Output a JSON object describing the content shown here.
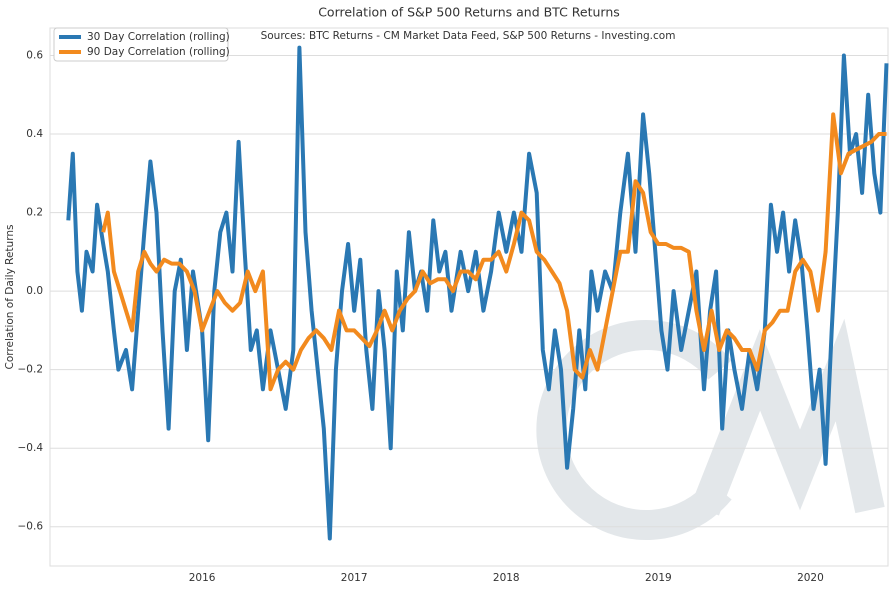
{
  "chart_data": {
    "type": "line",
    "title": "Correlation of S&P 500 Returns and BTC Returns",
    "annotation": "Sources: BTC Returns - CM Market Data Feed,  S&P 500 Returns - Investing.com",
    "y_label": "Correlation of Daily Returns",
    "xlim": [
      2015.0,
      2020.51
    ],
    "xticks": [
      2016,
      2017,
      2018,
      2019,
      2020
    ],
    "ylim": [
      -0.7,
      0.67
    ],
    "yticks": [
      {
        "value": -0.6,
        "label": "−0.6"
      },
      {
        "value": -0.4,
        "label": "−0.4"
      },
      {
        "value": -0.2,
        "label": "−0.2"
      },
      {
        "value": 0,
        "label": "0.0"
      },
      0.2,
      0.4,
      0.6
    ],
    "grid": true,
    "legend": "upper left",
    "series": [
      {
        "name": "30 Day Correlation (rolling)",
        "color": "#2a78b3",
        "x": [
          2015.12,
          2015.15,
          2015.18,
          2015.21,
          2015.24,
          2015.28,
          2015.31,
          2015.35,
          2015.38,
          2015.42,
          2015.45,
          2015.5,
          2015.54,
          2015.58,
          2015.62,
          2015.66,
          2015.7,
          2015.74,
          2015.78,
          2015.82,
          2015.86,
          2015.9,
          2015.94,
          2016.0,
          2016.04,
          2016.08,
          2016.12,
          2016.16,
          2016.2,
          2016.24,
          2016.28,
          2016.32,
          2016.36,
          2016.4,
          2016.45,
          2016.5,
          2016.55,
          2016.6,
          2016.64,
          2016.68,
          2016.72,
          2016.76,
          2016.8,
          2016.84,
          2016.88,
          2016.92,
          2016.96,
          2017.0,
          2017.04,
          2017.08,
          2017.12,
          2017.16,
          2017.2,
          2017.24,
          2017.28,
          2017.32,
          2017.36,
          2017.4,
          2017.44,
          2017.48,
          2017.52,
          2017.56,
          2017.6,
          2017.64,
          2017.7,
          2017.75,
          2017.8,
          2017.85,
          2017.9,
          2017.95,
          2018.0,
          2018.05,
          2018.1,
          2018.15,
          2018.2,
          2018.24,
          2018.28,
          2018.32,
          2018.36,
          2018.4,
          2018.44,
          2018.48,
          2018.52,
          2018.56,
          2018.6,
          2018.65,
          2018.7,
          2018.75,
          2018.8,
          2018.85,
          2018.9,
          2018.94,
          2018.98,
          2019.02,
          2019.06,
          2019.1,
          2019.15,
          2019.2,
          2019.25,
          2019.3,
          2019.34,
          2019.38,
          2019.42,
          2019.46,
          2019.5,
          2019.55,
          2019.6,
          2019.65,
          2019.7,
          2019.74,
          2019.78,
          2019.82,
          2019.86,
          2019.9,
          2019.94,
          2019.98,
          2020.02,
          2020.06,
          2020.1,
          2020.14,
          2020.18,
          2020.22,
          2020.26,
          2020.3,
          2020.34,
          2020.38,
          2020.42,
          2020.46,
          2020.5
        ],
        "values": [
          0.18,
          0.35,
          0.05,
          -0.05,
          0.1,
          0.05,
          0.22,
          0.12,
          0.05,
          -0.1,
          -0.2,
          -0.15,
          -0.25,
          -0.05,
          0.15,
          0.33,
          0.2,
          -0.1,
          -0.35,
          0.0,
          0.08,
          -0.15,
          0.05,
          -0.1,
          -0.38,
          0.0,
          0.15,
          0.2,
          0.05,
          0.38,
          0.1,
          -0.15,
          -0.1,
          -0.25,
          -0.1,
          -0.2,
          -0.3,
          -0.15,
          0.62,
          0.15,
          -0.05,
          -0.2,
          -0.35,
          -0.63,
          -0.2,
          0.0,
          0.12,
          -0.05,
          0.08,
          -0.15,
          -0.3,
          0.0,
          -0.15,
          -0.4,
          0.05,
          -0.1,
          0.15,
          0.0,
          0.05,
          -0.05,
          0.18,
          0.05,
          0.1,
          -0.05,
          0.1,
          0.0,
          0.1,
          -0.05,
          0.05,
          0.2,
          0.1,
          0.2,
          0.1,
          0.35,
          0.25,
          -0.15,
          -0.25,
          -0.1,
          -0.2,
          -0.45,
          -0.3,
          -0.1,
          -0.25,
          0.05,
          -0.05,
          0.05,
          0.0,
          0.2,
          0.35,
          0.1,
          0.45,
          0.3,
          0.1,
          -0.1,
          -0.2,
          0.0,
          -0.15,
          -0.05,
          0.05,
          -0.25,
          -0.05,
          0.05,
          -0.35,
          -0.1,
          -0.2,
          -0.3,
          -0.15,
          -0.25,
          -0.1,
          0.22,
          0.1,
          0.2,
          0.05,
          0.18,
          0.08,
          -0.1,
          -0.3,
          -0.2,
          -0.44,
          -0.1,
          0.2,
          0.6,
          0.35,
          0.4,
          0.25,
          0.5,
          0.3,
          0.2,
          0.58
        ]
      },
      {
        "name": "90 Day Correlation (rolling)",
        "color": "#f28a1e",
        "x": [
          2015.35,
          2015.38,
          2015.42,
          2015.46,
          2015.5,
          2015.54,
          2015.58,
          2015.62,
          2015.66,
          2015.7,
          2015.75,
          2015.8,
          2015.85,
          2015.9,
          2015.95,
          2016.0,
          2016.05,
          2016.1,
          2016.15,
          2016.2,
          2016.25,
          2016.3,
          2016.35,
          2016.4,
          2016.45,
          2016.5,
          2016.55,
          2016.6,
          2016.65,
          2016.7,
          2016.75,
          2016.8,
          2016.85,
          2016.9,
          2016.95,
          2017.0,
          2017.05,
          2017.1,
          2017.15,
          2017.2,
          2017.25,
          2017.3,
          2017.35,
          2017.4,
          2017.45,
          2017.5,
          2017.55,
          2017.6,
          2017.65,
          2017.7,
          2017.75,
          2017.8,
          2017.85,
          2017.9,
          2017.95,
          2018.0,
          2018.05,
          2018.1,
          2018.15,
          2018.2,
          2018.25,
          2018.3,
          2018.35,
          2018.4,
          2018.45,
          2018.5,
          2018.55,
          2018.6,
          2018.65,
          2018.7,
          2018.75,
          2018.8,
          2018.85,
          2018.9,
          2018.95,
          2019.0,
          2019.05,
          2019.1,
          2019.15,
          2019.2,
          2019.25,
          2019.3,
          2019.35,
          2019.4,
          2019.45,
          2019.5,
          2019.55,
          2019.6,
          2019.65,
          2019.7,
          2019.75,
          2019.8,
          2019.85,
          2019.9,
          2019.95,
          2020.0,
          2020.05,
          2020.1,
          2020.15,
          2020.2,
          2020.25,
          2020.3,
          2020.35,
          2020.4,
          2020.45,
          2020.5
        ],
        "values": [
          0.15,
          0.2,
          0.05,
          0.0,
          -0.05,
          -0.1,
          0.05,
          0.1,
          0.07,
          0.05,
          0.08,
          0.07,
          0.07,
          0.05,
          0.0,
          -0.1,
          -0.05,
          0.0,
          -0.03,
          -0.05,
          -0.03,
          0.05,
          0.0,
          0.05,
          -0.25,
          -0.2,
          -0.18,
          -0.2,
          -0.15,
          -0.12,
          -0.1,
          -0.12,
          -0.15,
          -0.05,
          -0.1,
          -0.1,
          -0.12,
          -0.14,
          -0.1,
          -0.05,
          -0.1,
          -0.05,
          -0.02,
          0.0,
          0.05,
          0.02,
          0.03,
          0.03,
          0.0,
          0.05,
          0.05,
          0.03,
          0.08,
          0.08,
          0.1,
          0.05,
          0.12,
          0.2,
          0.18,
          0.1,
          0.08,
          0.05,
          0.02,
          -0.05,
          -0.2,
          -0.22,
          -0.15,
          -0.2,
          -0.1,
          0.0,
          0.1,
          0.1,
          0.28,
          0.25,
          0.15,
          0.12,
          0.12,
          0.11,
          0.11,
          0.1,
          -0.05,
          -0.15,
          -0.05,
          -0.15,
          -0.1,
          -0.12,
          -0.15,
          -0.15,
          -0.2,
          -0.1,
          -0.08,
          -0.05,
          -0.05,
          0.05,
          0.08,
          0.05,
          -0.05,
          0.1,
          0.45,
          0.3,
          0.35,
          0.36,
          0.37,
          0.38,
          0.4,
          0.4
        ]
      }
    ]
  }
}
